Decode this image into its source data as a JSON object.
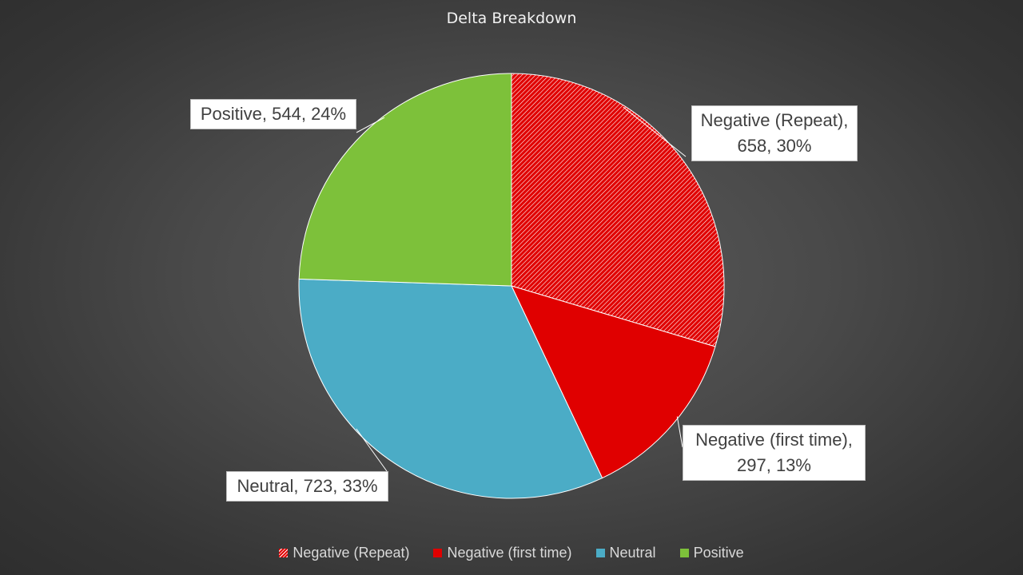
{
  "chart_data": {
    "type": "pie",
    "title": "Delta Breakdown",
    "slices": [
      {
        "name": "Negative (Repeat)",
        "value": 658,
        "percent": "30%",
        "color": "#e00000",
        "pattern": "hatch",
        "label_lines": [
          "Negative (Repeat),",
          "658, 30%"
        ]
      },
      {
        "name": "Negative (first time)",
        "value": 297,
        "percent": "13%",
        "color": "#e00000",
        "pattern": "solid",
        "label_lines": [
          "Negative (first time),",
          "297, 13%"
        ]
      },
      {
        "name": "Neutral",
        "value": 723,
        "percent": "33%",
        "color": "#4bacc6",
        "pattern": "solid",
        "label_lines": [
          "Neutral, 723, 33%"
        ]
      },
      {
        "name": "Positive",
        "value": 544,
        "percent": "24%",
        "color": "#7dc13a",
        "pattern": "solid",
        "label_lines": [
          "Positive, 544, 24%"
        ]
      }
    ],
    "legend_position": "bottom",
    "start_angle": "12 o'clock",
    "direction": "clockwise"
  }
}
